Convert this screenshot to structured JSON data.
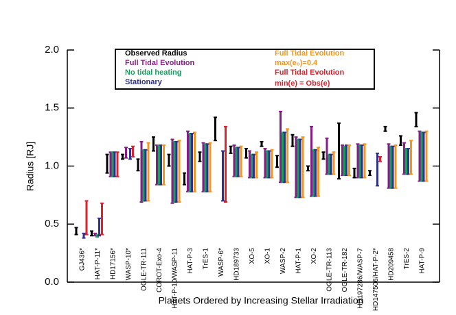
{
  "chart_data": {
    "type": "range",
    "xlabel": "Planets Ordered by Increasing Stellar Irradiation",
    "ylabel": "Radius [RJ]",
    "ylim": [
      0,
      2
    ],
    "yticks": [
      {
        "value": 0,
        "label": "0.0"
      },
      {
        "value": 0.5,
        "label": "0.5"
      },
      {
        "value": 1,
        "label": "1.0"
      },
      {
        "value": 1.5,
        "label": "1.5"
      },
      {
        "value": 2,
        "label": "2.0"
      }
    ],
    "categories": [
      "GJ436*",
      "HAT-P-11*",
      "HD17156*",
      "WASP-10*",
      "OGLE-TR-111",
      "COROT-Exo-4",
      "HAT-P-10/WASP-11",
      "HAT-P-3",
      "TrES-1",
      "WASP-6*",
      "HD189733",
      "XO-5",
      "XO-1",
      "WASP-2",
      "HAT-P-1",
      "XO-2",
      "OGLE-TR-113",
      "OGLE-TR-182",
      "HD197286/WASP-7",
      "HD147506/HAT-P-2*",
      "HD209458",
      "TrES-2",
      "HAT-P-9"
    ],
    "series": [
      {
        "name": "Observed Radius",
        "color": "#000000",
        "values": [
          0.44,
          0.42,
          1.02,
          1.08,
          1.01,
          1.19,
          1.05,
          0.89,
          1.08,
          1.32,
          1.14,
          1.11,
          1.19,
          1.04,
          1.22,
          0.98,
          1.09,
          1.13,
          0.94,
          0.94,
          1.32,
          1.22,
          1.4
        ],
        "errors": [
          0.03,
          0.02,
          0.08,
          0.02,
          0.05,
          0.06,
          0.05,
          0.05,
          0.04,
          0.1,
          0.03,
          0.04,
          0.02,
          0.05,
          0.05,
          0.02,
          0.03,
          0.24,
          0.04,
          0.02,
          0.02,
          0.04,
          0.06
        ]
      },
      {
        "name": "Full Tidal Evolution",
        "color": "#8b1a89",
        "low": [
          null,
          0.4,
          0.91,
          1.07,
          0.69,
          0.84,
          0.68,
          0.78,
          0.78,
          null,
          0.91,
          0.9,
          0.9,
          0.86,
          0.73,
          0.74,
          0.93,
          0.92,
          0.9,
          null,
          0.81,
          0.93,
          0.87
        ],
        "high": [
          null,
          0.42,
          1.12,
          1.16,
          1.21,
          1.18,
          1.23,
          1.3,
          1.2,
          null,
          1.18,
          1.13,
          1.15,
          1.47,
          1.25,
          1.34,
          1.24,
          1.18,
          1.19,
          null,
          1.19,
          1.2,
          1.3
        ]
      },
      {
        "name": "No tidal heating",
        "color": "#17a05d",
        "low": [
          null,
          0.39,
          0.91,
          null,
          0.7,
          0.84,
          0.69,
          0.78,
          0.78,
          null,
          0.91,
          0.9,
          0.9,
          0.86,
          0.73,
          0.74,
          0.93,
          0.92,
          0.9,
          null,
          0.81,
          0.93,
          0.87
        ],
        "high": [
          null,
          0.41,
          1.12,
          null,
          1.14,
          1.18,
          1.21,
          1.28,
          1.19,
          null,
          1.16,
          1.1,
          1.13,
          1.29,
          1.23,
          1.14,
          1.1,
          1.17,
          1.18,
          null,
          1.17,
          1.15,
          1.29
        ]
      },
      {
        "name": "Stationary",
        "color": "#2e3192",
        "low": [
          0.38,
          0.4,
          0.91,
          1.06,
          0.7,
          0.84,
          0.69,
          0.78,
          0.78,
          0.7,
          0.91,
          0.9,
          0.9,
          0.86,
          0.73,
          0.74,
          0.93,
          0.92,
          0.9,
          0.83,
          0.81,
          0.93,
          0.87
        ],
        "high": [
          0.42,
          0.55,
          1.12,
          1.15,
          1.14,
          1.18,
          1.21,
          1.28,
          1.19,
          1.13,
          1.16,
          1.1,
          1.13,
          1.29,
          1.23,
          1.14,
          1.1,
          1.18,
          1.18,
          1.11,
          1.17,
          1.15,
          1.29
        ]
      },
      {
        "name": "Full Tidal Evolution",
        "note": "max(e₀)=0.4",
        "color": "#f7941d",
        "low": [
          null,
          null,
          null,
          null,
          0.7,
          0.84,
          0.69,
          0.78,
          0.78,
          null,
          0.91,
          0.9,
          0.9,
          0.86,
          0.73,
          0.74,
          0.93,
          0.92,
          0.9,
          null,
          0.81,
          0.93,
          0.87
        ],
        "high": [
          null,
          null,
          null,
          null,
          1.2,
          1.18,
          1.22,
          1.29,
          1.2,
          null,
          1.17,
          1.12,
          1.14,
          1.32,
          1.25,
          1.16,
          1.12,
          1.18,
          1.19,
          null,
          1.18,
          1.22,
          1.3
        ]
      },
      {
        "name": "Full Tidal Evolution",
        "note": "min(e) = Obs(e)",
        "color": "#e0202a",
        "low": [
          0.41,
          0.41,
          0.91,
          1.08,
          null,
          null,
          null,
          null,
          null,
          0.69,
          null,
          null,
          null,
          null,
          null,
          null,
          null,
          null,
          null,
          1.04,
          null,
          null,
          null
        ],
        "high": [
          0.7,
          0.68,
          1.12,
          1.17,
          null,
          null,
          null,
          null,
          null,
          1.34,
          null,
          null,
          null,
          null,
          null,
          null,
          null,
          null,
          null,
          1.08,
          null,
          null,
          null
        ]
      }
    ]
  }
}
